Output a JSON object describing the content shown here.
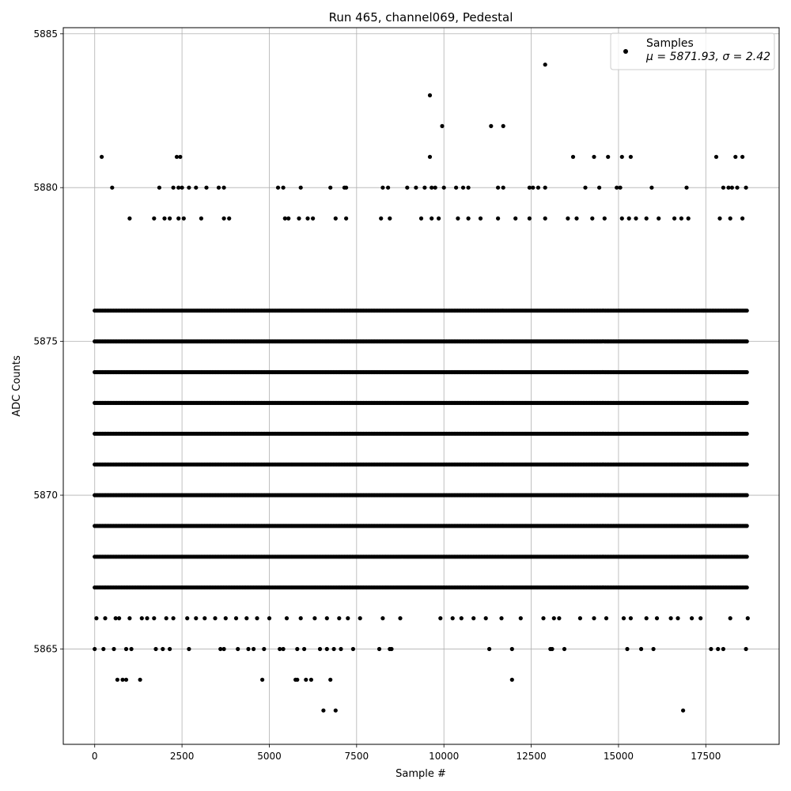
{
  "chart_data": {
    "type": "scatter",
    "title": "Run 465, channel069, Pedestal",
    "xlabel": "Sample #",
    "ylabel": "ADC Counts",
    "xlim": [
      -900,
      19600
    ],
    "ylim": [
      5861.9,
      5885.2
    ],
    "x_ticks": [
      0,
      2500,
      5000,
      7500,
      10000,
      12500,
      15000,
      17500
    ],
    "x_tick_labels": [
      "0",
      "2500",
      "5000",
      "7500",
      "10000",
      "12500",
      "15000",
      "17500"
    ],
    "y_ticks": [
      5865,
      5870,
      5875,
      5880,
      5885
    ],
    "y_tick_labels": [
      "5865",
      "5870",
      "5875",
      "5880",
      "5885"
    ],
    "grid": true,
    "legend_position": "top-right",
    "legend": {
      "series_label": "Samples",
      "stats_label": "μ = 5871.93, σ = 2.42"
    },
    "sample_count": 18700,
    "marker_color": "#000000",
    "series": [
      {
        "name": "Samples",
        "levels": [
          {
            "y": 5869,
            "x_ranges": [
              [
                0,
                18700
              ]
            ]
          },
          {
            "y": 5870,
            "x_ranges": [
              [
                0,
                18700
              ]
            ]
          },
          {
            "y": 5871,
            "x_ranges": [
              [
                0,
                18700
              ]
            ]
          },
          {
            "y": 5872,
            "x_ranges": [
              [
                0,
                18700
              ]
            ]
          },
          {
            "y": 5873,
            "x_ranges": [
              [
                0,
                18700
              ]
            ]
          },
          {
            "y": 5874,
            "x_ranges": [
              [
                0,
                18700
              ]
            ]
          },
          {
            "y": 5875,
            "x_ranges": [
              [
                0,
                18700
              ]
            ]
          },
          {
            "y": 5876,
            "x_ranges": [
              [
                0,
                18700
              ]
            ]
          },
          {
            "y": 5868,
            "x_ranges": [
              [
                0,
                18700
              ]
            ]
          },
          {
            "y": 5867,
            "x_ranges": [
              [
                0,
                18700
              ]
            ]
          }
        ],
        "points": [
          {
            "x": 200,
            "y": 5881
          },
          {
            "x": 2350,
            "y": 5881
          },
          {
            "x": 2450,
            "y": 5881
          },
          {
            "x": 9600,
            "y": 5883
          },
          {
            "x": 9600,
            "y": 5881
          },
          {
            "x": 9950,
            "y": 5882
          },
          {
            "x": 11350,
            "y": 5882
          },
          {
            "x": 11700,
            "y": 5882
          },
          {
            "x": 12900,
            "y": 5884
          },
          {
            "x": 13700,
            "y": 5881
          },
          {
            "x": 14300,
            "y": 5881
          },
          {
            "x": 14700,
            "y": 5881
          },
          {
            "x": 15100,
            "y": 5881
          },
          {
            "x": 15350,
            "y": 5881
          },
          {
            "x": 17800,
            "y": 5881
          },
          {
            "x": 18350,
            "y": 5881
          },
          {
            "x": 18550,
            "y": 5881
          },
          {
            "x": 500,
            "y": 5880
          },
          {
            "x": 1850,
            "y": 5880
          },
          {
            "x": 2250,
            "y": 5880
          },
          {
            "x": 2400,
            "y": 5880
          },
          {
            "x": 2500,
            "y": 5880
          },
          {
            "x": 2700,
            "y": 5880
          },
          {
            "x": 2900,
            "y": 5880
          },
          {
            "x": 3200,
            "y": 5880
          },
          {
            "x": 3550,
            "y": 5880
          },
          {
            "x": 3700,
            "y": 5880
          },
          {
            "x": 5250,
            "y": 5880
          },
          {
            "x": 5400,
            "y": 5880
          },
          {
            "x": 5900,
            "y": 5880
          },
          {
            "x": 6750,
            "y": 5880
          },
          {
            "x": 7150,
            "y": 5880
          },
          {
            "x": 7200,
            "y": 5880
          },
          {
            "x": 8250,
            "y": 5880
          },
          {
            "x": 8400,
            "y": 5880
          },
          {
            "x": 8950,
            "y": 5880
          },
          {
            "x": 9200,
            "y": 5880
          },
          {
            "x": 9450,
            "y": 5880
          },
          {
            "x": 9650,
            "y": 5880
          },
          {
            "x": 9750,
            "y": 5880
          },
          {
            "x": 10000,
            "y": 5880
          },
          {
            "x": 10350,
            "y": 5880
          },
          {
            "x": 10550,
            "y": 5880
          },
          {
            "x": 10700,
            "y": 5880
          },
          {
            "x": 11550,
            "y": 5880
          },
          {
            "x": 11700,
            "y": 5880
          },
          {
            "x": 12450,
            "y": 5880
          },
          {
            "x": 12550,
            "y": 5880
          },
          {
            "x": 12700,
            "y": 5880
          },
          {
            "x": 12900,
            "y": 5880
          },
          {
            "x": 14050,
            "y": 5880
          },
          {
            "x": 14450,
            "y": 5880
          },
          {
            "x": 14950,
            "y": 5880
          },
          {
            "x": 15050,
            "y": 5880
          },
          {
            "x": 15950,
            "y": 5880
          },
          {
            "x": 16950,
            "y": 5880
          },
          {
            "x": 18000,
            "y": 5880
          },
          {
            "x": 18150,
            "y": 5880
          },
          {
            "x": 18250,
            "y": 5880
          },
          {
            "x": 18400,
            "y": 5880
          },
          {
            "x": 18650,
            "y": 5880
          },
          {
            "x": 1000,
            "y": 5879
          },
          {
            "x": 1700,
            "y": 5879
          },
          {
            "x": 2000,
            "y": 5879
          },
          {
            "x": 2150,
            "y": 5879
          },
          {
            "x": 2400,
            "y": 5879
          },
          {
            "x": 2550,
            "y": 5879
          },
          {
            "x": 3050,
            "y": 5879
          },
          {
            "x": 3700,
            "y": 5879
          },
          {
            "x": 3850,
            "y": 5879
          },
          {
            "x": 5450,
            "y": 5879
          },
          {
            "x": 5550,
            "y": 5879
          },
          {
            "x": 5850,
            "y": 5879
          },
          {
            "x": 6100,
            "y": 5879
          },
          {
            "x": 6250,
            "y": 5879
          },
          {
            "x": 6900,
            "y": 5879
          },
          {
            "x": 7200,
            "y": 5879
          },
          {
            "x": 8200,
            "y": 5879
          },
          {
            "x": 8450,
            "y": 5879
          },
          {
            "x": 9350,
            "y": 5879
          },
          {
            "x": 9650,
            "y": 5879
          },
          {
            "x": 9850,
            "y": 5879
          },
          {
            "x": 10400,
            "y": 5879
          },
          {
            "x": 10700,
            "y": 5879
          },
          {
            "x": 11050,
            "y": 5879
          },
          {
            "x": 11550,
            "y": 5879
          },
          {
            "x": 12050,
            "y": 5879
          },
          {
            "x": 12450,
            "y": 5879
          },
          {
            "x": 12900,
            "y": 5879
          },
          {
            "x": 13550,
            "y": 5879
          },
          {
            "x": 13800,
            "y": 5879
          },
          {
            "x": 14250,
            "y": 5879
          },
          {
            "x": 14600,
            "y": 5879
          },
          {
            "x": 15100,
            "y": 5879
          },
          {
            "x": 15300,
            "y": 5879
          },
          {
            "x": 15500,
            "y": 5879
          },
          {
            "x": 15800,
            "y": 5879
          },
          {
            "x": 16150,
            "y": 5879
          },
          {
            "x": 16600,
            "y": 5879
          },
          {
            "x": 16800,
            "y": 5879
          },
          {
            "x": 17000,
            "y": 5879
          },
          {
            "x": 17900,
            "y": 5879
          },
          {
            "x": 18200,
            "y": 5879
          },
          {
            "x": 18550,
            "y": 5879
          },
          {
            "x": 650,
            "y": 5864
          },
          {
            "x": 800,
            "y": 5864
          },
          {
            "x": 900,
            "y": 5864
          },
          {
            "x": 1300,
            "y": 5864
          },
          {
            "x": 4800,
            "y": 5864
          },
          {
            "x": 5750,
            "y": 5864
          },
          {
            "x": 5800,
            "y": 5864
          },
          {
            "x": 6050,
            "y": 5864
          },
          {
            "x": 6200,
            "y": 5864
          },
          {
            "x": 6750,
            "y": 5864
          },
          {
            "x": 11950,
            "y": 5864
          },
          {
            "x": 6550,
            "y": 5863
          },
          {
            "x": 6900,
            "y": 5863
          },
          {
            "x": 16850,
            "y": 5863
          },
          {
            "x": 0,
            "y": 5865
          },
          {
            "x": 250,
            "y": 5865
          },
          {
            "x": 550,
            "y": 5865
          },
          {
            "x": 900,
            "y": 5865
          },
          {
            "x": 1050,
            "y": 5865
          },
          {
            "x": 1750,
            "y": 5865
          },
          {
            "x": 1950,
            "y": 5865
          },
          {
            "x": 2150,
            "y": 5865
          },
          {
            "x": 2700,
            "y": 5865
          },
          {
            "x": 3600,
            "y": 5865
          },
          {
            "x": 3700,
            "y": 5865
          },
          {
            "x": 4100,
            "y": 5865
          },
          {
            "x": 4400,
            "y": 5865
          },
          {
            "x": 4550,
            "y": 5865
          },
          {
            "x": 4850,
            "y": 5865
          },
          {
            "x": 5300,
            "y": 5865
          },
          {
            "x": 5400,
            "y": 5865
          },
          {
            "x": 5800,
            "y": 5865
          },
          {
            "x": 6000,
            "y": 5865
          },
          {
            "x": 6450,
            "y": 5865
          },
          {
            "x": 6650,
            "y": 5865
          },
          {
            "x": 6850,
            "y": 5865
          },
          {
            "x": 7050,
            "y": 5865
          },
          {
            "x": 7400,
            "y": 5865
          },
          {
            "x": 8150,
            "y": 5865
          },
          {
            "x": 8450,
            "y": 5865
          },
          {
            "x": 8500,
            "y": 5865
          },
          {
            "x": 11300,
            "y": 5865
          },
          {
            "x": 11950,
            "y": 5865
          },
          {
            "x": 13050,
            "y": 5865
          },
          {
            "x": 13100,
            "y": 5865
          },
          {
            "x": 13450,
            "y": 5865
          },
          {
            "x": 15250,
            "y": 5865
          },
          {
            "x": 15650,
            "y": 5865
          },
          {
            "x": 16000,
            "y": 5865
          },
          {
            "x": 17650,
            "y": 5865
          },
          {
            "x": 17850,
            "y": 5865
          },
          {
            "x": 18000,
            "y": 5865
          },
          {
            "x": 18650,
            "y": 5865
          },
          {
            "x": 50,
            "y": 5866
          },
          {
            "x": 300,
            "y": 5866
          },
          {
            "x": 600,
            "y": 5866
          },
          {
            "x": 700,
            "y": 5866
          },
          {
            "x": 1000,
            "y": 5866
          },
          {
            "x": 1350,
            "y": 5866
          },
          {
            "x": 1500,
            "y": 5866
          },
          {
            "x": 1700,
            "y": 5866
          },
          {
            "x": 2050,
            "y": 5866
          },
          {
            "x": 2250,
            "y": 5866
          },
          {
            "x": 2650,
            "y": 5866
          },
          {
            "x": 2900,
            "y": 5866
          },
          {
            "x": 3150,
            "y": 5866
          },
          {
            "x": 3450,
            "y": 5866
          },
          {
            "x": 3750,
            "y": 5866
          },
          {
            "x": 4050,
            "y": 5866
          },
          {
            "x": 4350,
            "y": 5866
          },
          {
            "x": 4650,
            "y": 5866
          },
          {
            "x": 5000,
            "y": 5866
          },
          {
            "x": 5500,
            "y": 5866
          },
          {
            "x": 5900,
            "y": 5866
          },
          {
            "x": 6300,
            "y": 5866
          },
          {
            "x": 6650,
            "y": 5866
          },
          {
            "x": 7000,
            "y": 5866
          },
          {
            "x": 7250,
            "y": 5866
          },
          {
            "x": 7600,
            "y": 5866
          },
          {
            "x": 8250,
            "y": 5866
          },
          {
            "x": 8750,
            "y": 5866
          },
          {
            "x": 9900,
            "y": 5866
          },
          {
            "x": 10250,
            "y": 5866
          },
          {
            "x": 10500,
            "y": 5866
          },
          {
            "x": 10850,
            "y": 5866
          },
          {
            "x": 11200,
            "y": 5866
          },
          {
            "x": 11650,
            "y": 5866
          },
          {
            "x": 12200,
            "y": 5866
          },
          {
            "x": 12850,
            "y": 5866
          },
          {
            "x": 13150,
            "y": 5866
          },
          {
            "x": 13300,
            "y": 5866
          },
          {
            "x": 13900,
            "y": 5866
          },
          {
            "x": 14300,
            "y": 5866
          },
          {
            "x": 14650,
            "y": 5866
          },
          {
            "x": 15150,
            "y": 5866
          },
          {
            "x": 15350,
            "y": 5866
          },
          {
            "x": 15800,
            "y": 5866
          },
          {
            "x": 16100,
            "y": 5866
          },
          {
            "x": 16500,
            "y": 5866
          },
          {
            "x": 16700,
            "y": 5866
          },
          {
            "x": 17100,
            "y": 5866
          },
          {
            "x": 17350,
            "y": 5866
          },
          {
            "x": 18200,
            "y": 5866
          },
          {
            "x": 18700,
            "y": 5866
          }
        ]
      }
    ]
  }
}
